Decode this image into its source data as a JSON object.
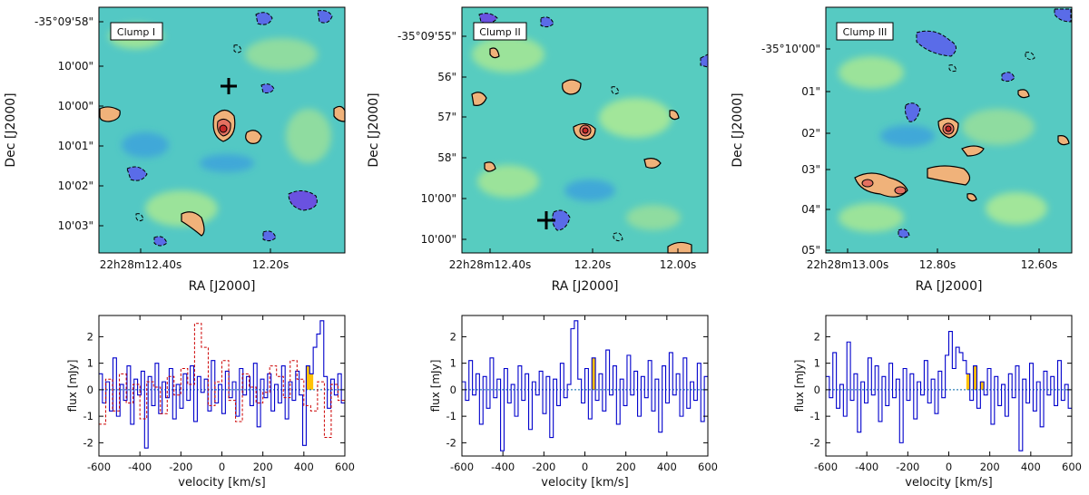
{
  "chart_data": [
    {
      "type": "heatmap",
      "label": "Clump I",
      "xlabel": "RA [J2000]",
      "ylabel": "Dec [J2000]",
      "x_ticks": [
        "22h28m12.40s",
        "12.20s"
      ],
      "y_ticks": [
        "-35°09'58\"",
        "10'00\"",
        "10'00\"",
        "10'01\"",
        "10'02\"",
        "10'03\""
      ],
      "marker": "cross"
    },
    {
      "type": "heatmap",
      "label": "Clump II",
      "xlabel": "RA [J2000]",
      "ylabel": "Dec [J2000]",
      "x_ticks": [
        "22h28m12.40s",
        "12.20s",
        "12.00s"
      ],
      "y_ticks": [
        "-35°09'55\"",
        "56\"",
        "57\"",
        "58\"",
        "10'00\"",
        "10'00\""
      ],
      "marker": "cross"
    },
    {
      "type": "heatmap",
      "label": "Clump III",
      "xlabel": "RA [J2000]",
      "ylabel": "Dec [J2000]",
      "x_ticks": [
        "22h28m13.00s",
        "12.80s",
        "12.60s"
      ],
      "y_ticks": [
        "-35°10'00\"",
        "01\"",
        "02\"",
        "03\"",
        "04\"",
        "05\""
      ]
    },
    {
      "type": "line",
      "xlabel": "velocity [km/s]",
      "ylabel": "flux [mJy]",
      "xlim": [
        -600,
        600
      ],
      "ylim": [
        -2.5,
        2.8
      ],
      "x_ticks": [
        -600,
        -400,
        -200,
        0,
        200,
        400,
        600
      ],
      "y_ticks": [
        -2,
        -1,
        0,
        1,
        2
      ],
      "highlight": [
        400,
        460
      ],
      "series": [
        {
          "name": "spectrum",
          "color": "#0000cc",
          "values": [
            0.6,
            -0.5,
            0.3,
            -0.8,
            1.2,
            -1.0,
            0.2,
            -0.4,
            0.9,
            -1.3,
            0.4,
            -0.2,
            0.7,
            -2.2,
            0.5,
            -0.6,
            1.0,
            -0.9,
            0.3,
            -0.3,
            0.8,
            -1.1,
            0.2,
            -0.7,
            0.6,
            -0.4,
            0.9,
            -1.2,
            0.5,
            -0.1,
            0.4,
            -0.8,
            1.1,
            -0.5,
            0.2,
            -0.9,
            0.7,
            -0.3,
            0.3,
            -1.0,
            0.8,
            -0.2,
            0.5,
            -0.6,
            1.0,
            -1.4,
            0.4,
            -0.3,
            0.6,
            -0.8,
            0.2,
            -0.5,
            0.9,
            -1.1,
            0.3,
            -0.4,
            0.7,
            -0.2,
            -2.1,
            0.9,
            0.6,
            1.6,
            2.1,
            2.6,
            0.5,
            -0.7,
            0.4,
            -0.2,
            0.6,
            -0.5
          ]
        },
        {
          "name": "comparison",
          "color": "#cc0000",
          "values": [
            -1.3,
            0.4,
            -0.8,
            0.6,
            -0.5,
            0.2,
            -1.1,
            0.3,
            0.1,
            -0.9,
            0.5,
            -0.2,
            0.8,
            0.2,
            2.5,
            1.6,
            -0.6,
            0.3,
            1.1,
            -0.4,
            -1.2,
            0.6,
            0.1,
            -0.5,
            -0.1,
            0.9,
            0.5,
            -0.3,
            1.1,
            0.4,
            -0.6,
            -0.8,
            0.3,
            -1.8,
            0.2,
            -0.4
          ]
        }
      ]
    },
    {
      "type": "line",
      "xlabel": "velocity [km/s]",
      "ylabel": "flux [mJy]",
      "xlim": [
        -600,
        600
      ],
      "ylim": [
        -2.5,
        2.8
      ],
      "x_ticks": [
        -600,
        -400,
        -200,
        0,
        200,
        400,
        600
      ],
      "y_ticks": [
        -2,
        -1,
        0,
        1,
        2
      ],
      "highlight": [
        20,
        60
      ],
      "series": [
        {
          "name": "spectrum",
          "color": "#0000cc",
          "values": [
            0.3,
            -0.4,
            1.1,
            -0.2,
            0.6,
            -1.3,
            0.5,
            -0.7,
            1.2,
            -0.3,
            0.4,
            -2.3,
            0.8,
            -0.5,
            0.2,
            -1.0,
            0.9,
            -0.4,
            0.6,
            -1.5,
            0.3,
            -0.2,
            0.7,
            -0.9,
            0.5,
            -1.8,
            0.4,
            -0.6,
            1.0,
            -0.3,
            0.2,
            2.3,
            2.6,
            0.4,
            -0.5,
            0.8,
            -1.1,
            1.2,
            -0.4,
            0.6,
            -0.8,
            1.5,
            -0.2,
            0.9,
            -1.3,
            0.4,
            -0.6,
            1.3,
            -0.2,
            0.7,
            -1.0,
            0.5,
            -0.3,
            1.1,
            -0.8,
            0.4,
            -1.6,
            0.9,
            -0.5,
            1.4,
            -0.2,
            0.6,
            -1.0,
            1.2,
            -0.7,
            0.3,
            -0.4,
            1.0,
            -1.2,
            0.5
          ]
        }
      ]
    },
    {
      "type": "line",
      "xlabel": "velocity [km/s]",
      "ylabel": "flux [mJy]",
      "xlim": [
        -600,
        600
      ],
      "ylim": [
        -2.5,
        2.8
      ],
      "x_ticks": [
        -600,
        -400,
        -200,
        0,
        200,
        400,
        600
      ],
      "y_ticks": [
        -2,
        -1,
        0,
        1,
        2
      ],
      "highlight": [
        80,
        180
      ],
      "series": [
        {
          "name": "spectrum",
          "color": "#0000cc",
          "values": [
            0.5,
            -0.3,
            1.4,
            -0.7,
            0.2,
            -1.0,
            1.8,
            -0.4,
            0.6,
            -1.6,
            0.3,
            -0.5,
            1.2,
            -0.2,
            0.9,
            -1.2,
            0.5,
            -0.6,
            1.0,
            -0.3,
            0.4,
            -2.0,
            0.8,
            -0.4,
            0.6,
            -1.1,
            0.3,
            -0.2,
            1.1,
            -0.5,
            0.4,
            -0.9,
            0.7,
            -0.3,
            1.3,
            2.2,
            0.8,
            1.6,
            1.4,
            1.1,
            0.6,
            -0.4,
            0.9,
            -0.7,
            0.3,
            -0.2,
            0.8,
            -1.3,
            0.5,
            -0.6,
            0.2,
            -1.0,
            0.6,
            -0.3,
            0.9,
            -2.3,
            0.4,
            -0.5,
            1.0,
            -0.8,
            0.3,
            -1.4,
            0.7,
            -0.2,
            0.5,
            -0.6,
            1.1,
            -0.4,
            0.2,
            -0.7
          ]
        }
      ]
    }
  ]
}
